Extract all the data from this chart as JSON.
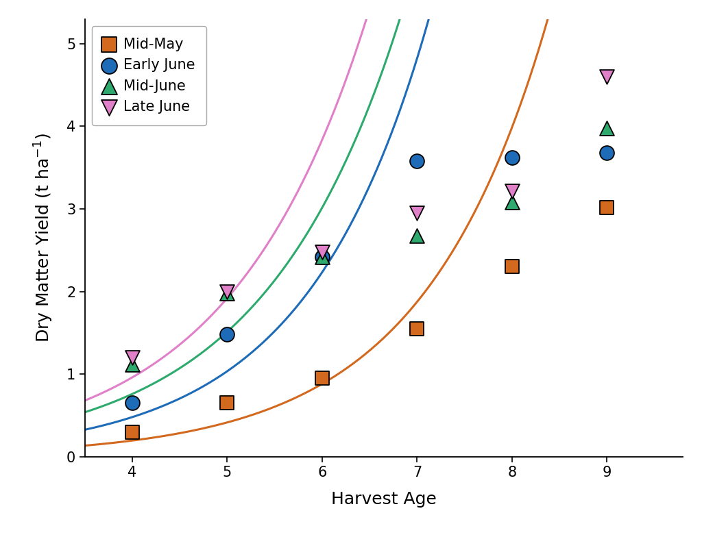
{
  "xlabel": "Harvest Age",
  "ylabel": "Dry Matter Yield (t ha$^{-1}$)",
  "xlim": [
    3.5,
    9.8
  ],
  "ylim": [
    0,
    5.3
  ],
  "xticks": [
    4,
    5,
    6,
    7,
    8,
    9
  ],
  "yticks": [
    0,
    1,
    2,
    3,
    4,
    5
  ],
  "series": [
    {
      "label": "Mid-May",
      "color": "#D2691E",
      "marker": "s",
      "x": [
        4,
        5,
        6,
        7,
        8,
        9
      ],
      "y": [
        0.3,
        0.65,
        0.95,
        1.55,
        2.3,
        3.02
      ],
      "curve_a": 0.018,
      "curve_b": 0.72
    },
    {
      "label": "Early June",
      "color": "#1E6BB8",
      "marker": "o",
      "x": [
        4,
        5,
        6,
        7,
        8,
        9
      ],
      "y": [
        0.65,
        1.48,
        2.42,
        3.58,
        3.62,
        3.68
      ],
      "curve_a": 0.028,
      "curve_b": 0.78
    },
    {
      "label": "Mid-June",
      "color": "#2EAA6E",
      "marker": "^",
      "x": [
        4,
        5,
        6,
        7,
        8,
        9
      ],
      "y": [
        1.12,
        1.98,
        2.42,
        2.68,
        3.08,
        3.98
      ],
      "curve_a": 0.055,
      "curve_b": 0.68
    },
    {
      "label": "Late June",
      "color": "#E080C8",
      "marker": "v",
      "x": [
        4,
        5,
        6,
        7,
        8,
        9
      ],
      "y": [
        1.2,
        2.0,
        2.48,
        2.95,
        3.22,
        4.6
      ],
      "curve_a": 0.065,
      "curve_b": 0.69
    }
  ],
  "background_color": "#ffffff",
  "axis_fontsize": 18,
  "tick_fontsize": 15,
  "legend_fontsize": 15,
  "marker_size": 15,
  "line_width": 2.2,
  "figsize": [
    10.24,
    7.84
  ],
  "dpi": 100
}
